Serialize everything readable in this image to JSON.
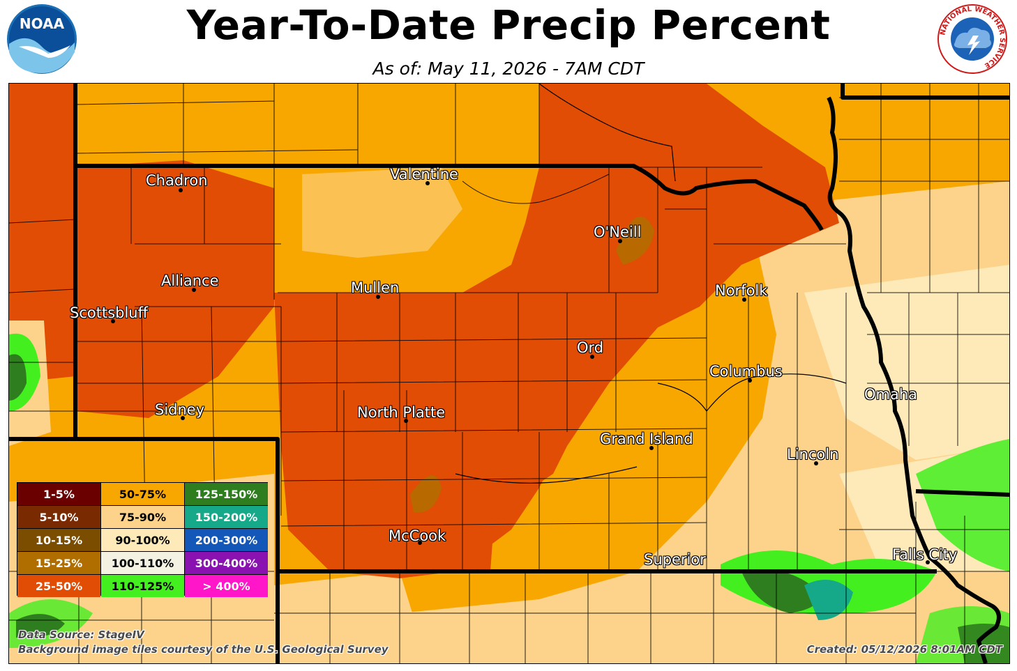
{
  "header": {
    "title": "Year-To-Date Precip Percent",
    "subtitle": "As of: May 11, 2026 - 7AM CDT",
    "left_logo_text": "NOAA",
    "right_logo_text": "NATIONAL WEATHER SERVICE"
  },
  "cities": [
    {
      "name": "Chadron"
    },
    {
      "name": "Valentine"
    },
    {
      "name": "O'Neill"
    },
    {
      "name": "Alliance"
    },
    {
      "name": "Mullen"
    },
    {
      "name": "Norfolk"
    },
    {
      "name": "Scottsbluff"
    },
    {
      "name": "Ord"
    },
    {
      "name": "Columbus"
    },
    {
      "name": "Omaha"
    },
    {
      "name": "Sidney"
    },
    {
      "name": "North Platte"
    },
    {
      "name": "Grand Island"
    },
    {
      "name": "Lincoln"
    },
    {
      "name": "McCook"
    },
    {
      "name": "Superior"
    },
    {
      "name": "Falls City"
    }
  ],
  "legend": [
    {
      "label": "1-5%",
      "color": "#6b0000",
      "text": "#ffffff"
    },
    {
      "label": "50-75%",
      "color": "#f7a700",
      "text": "#000000"
    },
    {
      "label": "125-150%",
      "color": "#2e7d1e",
      "text": "#ffffff"
    },
    {
      "label": "5-10%",
      "color": "#7a2a00",
      "text": "#ffffff"
    },
    {
      "label": "75-90%",
      "color": "#fdd28a",
      "text": "#000000"
    },
    {
      "label": "150-200%",
      "color": "#15a989",
      "text": "#ffffff"
    },
    {
      "label": "10-15%",
      "color": "#7a4d00",
      "text": "#ffffff"
    },
    {
      "label": "90-100%",
      "color": "#fdeab8",
      "text": "#000000"
    },
    {
      "label": "200-300%",
      "color": "#1357b8",
      "text": "#ffffff"
    },
    {
      "label": "15-25%",
      "color": "#b06e00",
      "text": "#ffffff"
    },
    {
      "label": "100-110%",
      "color": "#f3f2e3",
      "text": "#000000"
    },
    {
      "label": "300-400%",
      "color": "#8a12b0",
      "text": "#ffffff"
    },
    {
      "label": "25-50%",
      "color": "#e24d05",
      "text": "#ffffff"
    },
    {
      "label": "110-125%",
      "color": "#43ef1f",
      "text": "#000000"
    },
    {
      "label": "> 400%",
      "color": "#ff16c8",
      "text": "#ffffff"
    }
  ],
  "credits": {
    "source": "Data Source: StageIV",
    "background": "Background image tiles courtesy of the U.S. Geological Survey",
    "created": "Created: 05/12/2026 8:01AM CDT"
  }
}
